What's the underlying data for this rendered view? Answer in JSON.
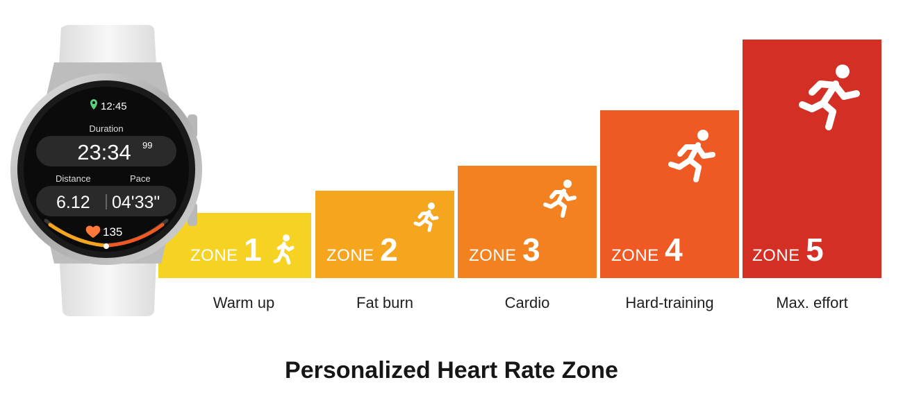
{
  "colors": {
    "zone1": "#f6d322",
    "zone2": "#f6a51f",
    "zone3": "#f4811f",
    "zone4": "#ef5a24",
    "zone5": "#d42f25",
    "watch_case": "#c9c9c9",
    "band": "#ececec",
    "screen": "#0b0b0b",
    "location_pin": "#5ad07a",
    "heart": "#ff7a3a"
  },
  "watch": {
    "time": "12:45",
    "duration_label": "Duration",
    "duration_value": "23:34",
    "duration_fraction": "99",
    "distance_label": "Distance",
    "distance_value": "6.12",
    "pace_label": "Pace",
    "pace_value": "04'33\"",
    "heart_rate": "135",
    "icons": [
      "location-pin-icon",
      "heart-icon"
    ]
  },
  "zones": [
    {
      "word": "ZONE",
      "number": "1",
      "label": "Warm up",
      "icon": "walking-person-icon"
    },
    {
      "word": "ZONE",
      "number": "2",
      "label": "Fat burn",
      "icon": "jogging-person-icon"
    },
    {
      "word": "ZONE",
      "number": "3",
      "label": "Cardio",
      "icon": "running-person-icon"
    },
    {
      "word": "ZONE",
      "number": "4",
      "label": "Hard-training",
      "icon": "running-person-icon"
    },
    {
      "word": "ZONE",
      "number": "5",
      "label": "Max. effort",
      "icon": "sprinting-person-icon"
    }
  ],
  "title": "Personalized Heart Rate Zone"
}
